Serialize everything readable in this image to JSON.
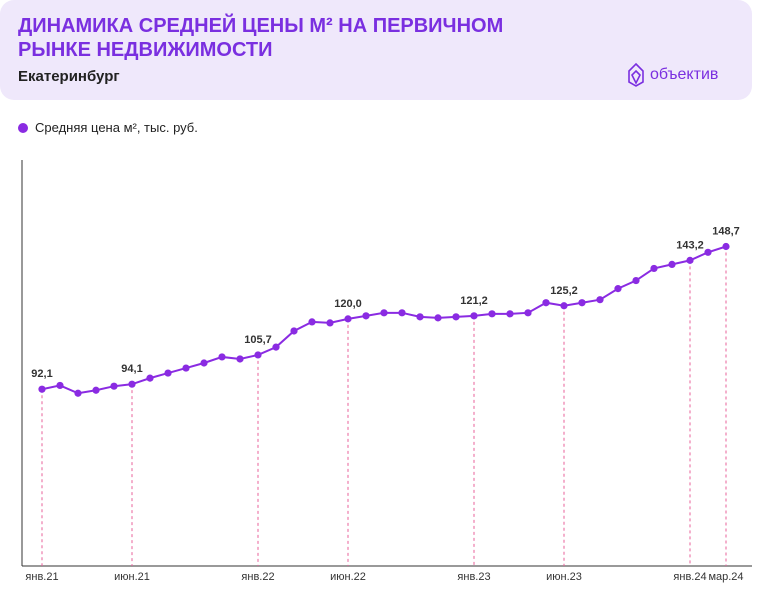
{
  "chart_data": {
    "type": "line",
    "title": "ДИНАМИКА СРЕДНЕЙ ЦЕНЫ М² НА ПЕРВИЧНОМ РЫНКЕ НЕДВИЖИМОСТИ",
    "subtitle": "Екатеринбург",
    "logo": "объектив",
    "categories": [
      "янв.21",
      null,
      null,
      null,
      null,
      "июн.21",
      null,
      null,
      null,
      null,
      null,
      null,
      "янв.22",
      null,
      null,
      null,
      null,
      "июн.22",
      null,
      null,
      null,
      null,
      null,
      null,
      "янв.23",
      null,
      null,
      null,
      null,
      "июн.23",
      null,
      null,
      null,
      null,
      null,
      null,
      "янв.24",
      null,
      "мар.24"
    ],
    "series": [
      {
        "name": "Средняя цена м², тыс. руб.",
        "color": "#8a2be2",
        "values": [
          92.1,
          93.6,
          90.5,
          91.7,
          93.3,
          94.1,
          96.5,
          98.5,
          100.5,
          102.5,
          104.9,
          104.1,
          105.7,
          108.8,
          115.2,
          118.8,
          118.4,
          120.0,
          121.2,
          122.4,
          122.4,
          120.8,
          120.4,
          120.8,
          121.2,
          122.0,
          122.0,
          122.4,
          126.4,
          125.2,
          126.4,
          127.6,
          132.0,
          135.2,
          140.0,
          141.6,
          143.2,
          146.4,
          148.7
        ],
        "value_labels": [
          "92,1",
          null,
          null,
          null,
          null,
          "94,1",
          null,
          null,
          null,
          null,
          null,
          null,
          "105,7",
          null,
          null,
          null,
          null,
          "120,0",
          null,
          null,
          null,
          null,
          null,
          null,
          "121,2",
          null,
          null,
          null,
          null,
          "125,2",
          null,
          null,
          null,
          null,
          null,
          null,
          "143,2",
          null,
          "148,7"
        ]
      }
    ],
    "ylim": [
      22,
      183
    ]
  }
}
